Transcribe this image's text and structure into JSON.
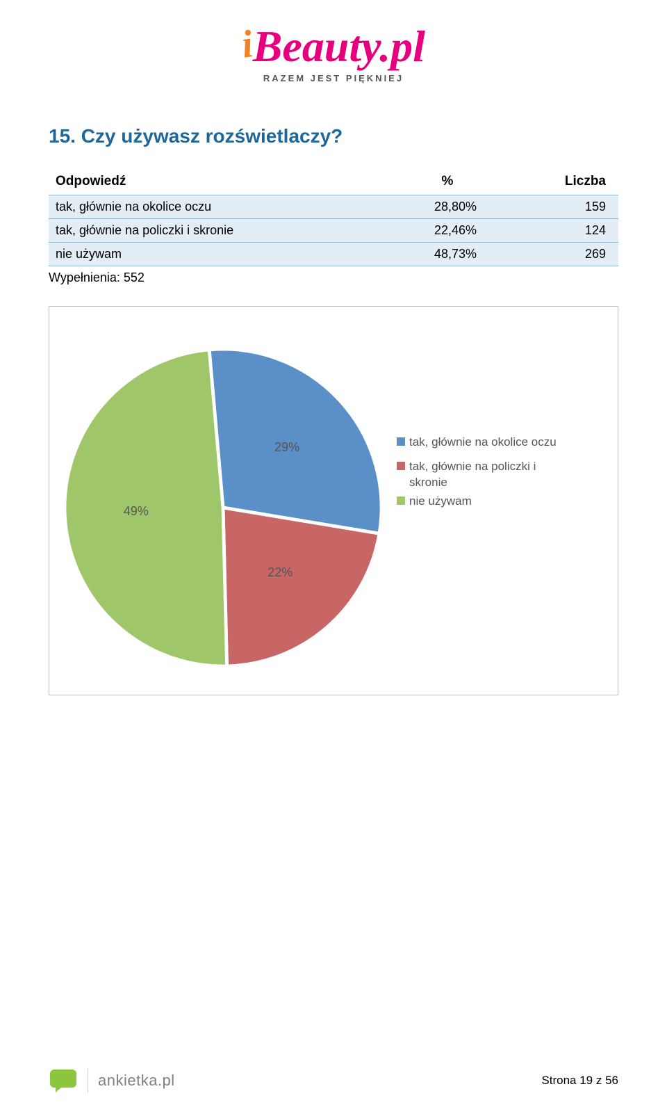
{
  "logo": {
    "main_prefix": "i",
    "main_text": "Beauty.pl",
    "tagline": "RAZEM JEST PIĘKNIEJ",
    "prefix_color": "#f58220",
    "text_color": "#e6007e",
    "tagline_color": "#555555"
  },
  "question": {
    "title": "15. Czy używasz rozświetlaczy?",
    "title_color": "#1f6699"
  },
  "table": {
    "header_answer": "Odpowiedź",
    "header_percent": "%",
    "header_count": "Liczba",
    "row_bg": "#e2edf5",
    "border_color": "#8fb8d6",
    "rows": [
      {
        "label": "tak, głównie na okolice oczu",
        "percent": "28,80%",
        "count": "159"
      },
      {
        "label": "tak, głównie na policzki i skronie",
        "percent": "22,46%",
        "count": "124"
      },
      {
        "label": "nie używam",
        "percent": "48,73%",
        "count": "269"
      }
    ]
  },
  "fill_note": "Wypełnienia: 552",
  "chart": {
    "type": "pie",
    "frame_border": "#bfbfbf",
    "slices": [
      {
        "legend_label": "tak, głównie na okolice oczu",
        "value": 29,
        "display_percent": "29%",
        "color": "#5b8fc7"
      },
      {
        "legend_label": "tak, głównie na policzki i skronie",
        "value": 22,
        "display_percent": "22%",
        "color": "#c86666"
      },
      {
        "legend_label": "nie używam",
        "value": 49,
        "display_percent": "49%",
        "color": "#9fc668"
      }
    ],
    "label_color": "#555555",
    "start_angle_deg": -5
  },
  "footer": {
    "brand": "ankietka.pl",
    "brand_color": "#808080",
    "bubble_color": "#8cc63f",
    "page_label": "Strona 19 z 56"
  }
}
